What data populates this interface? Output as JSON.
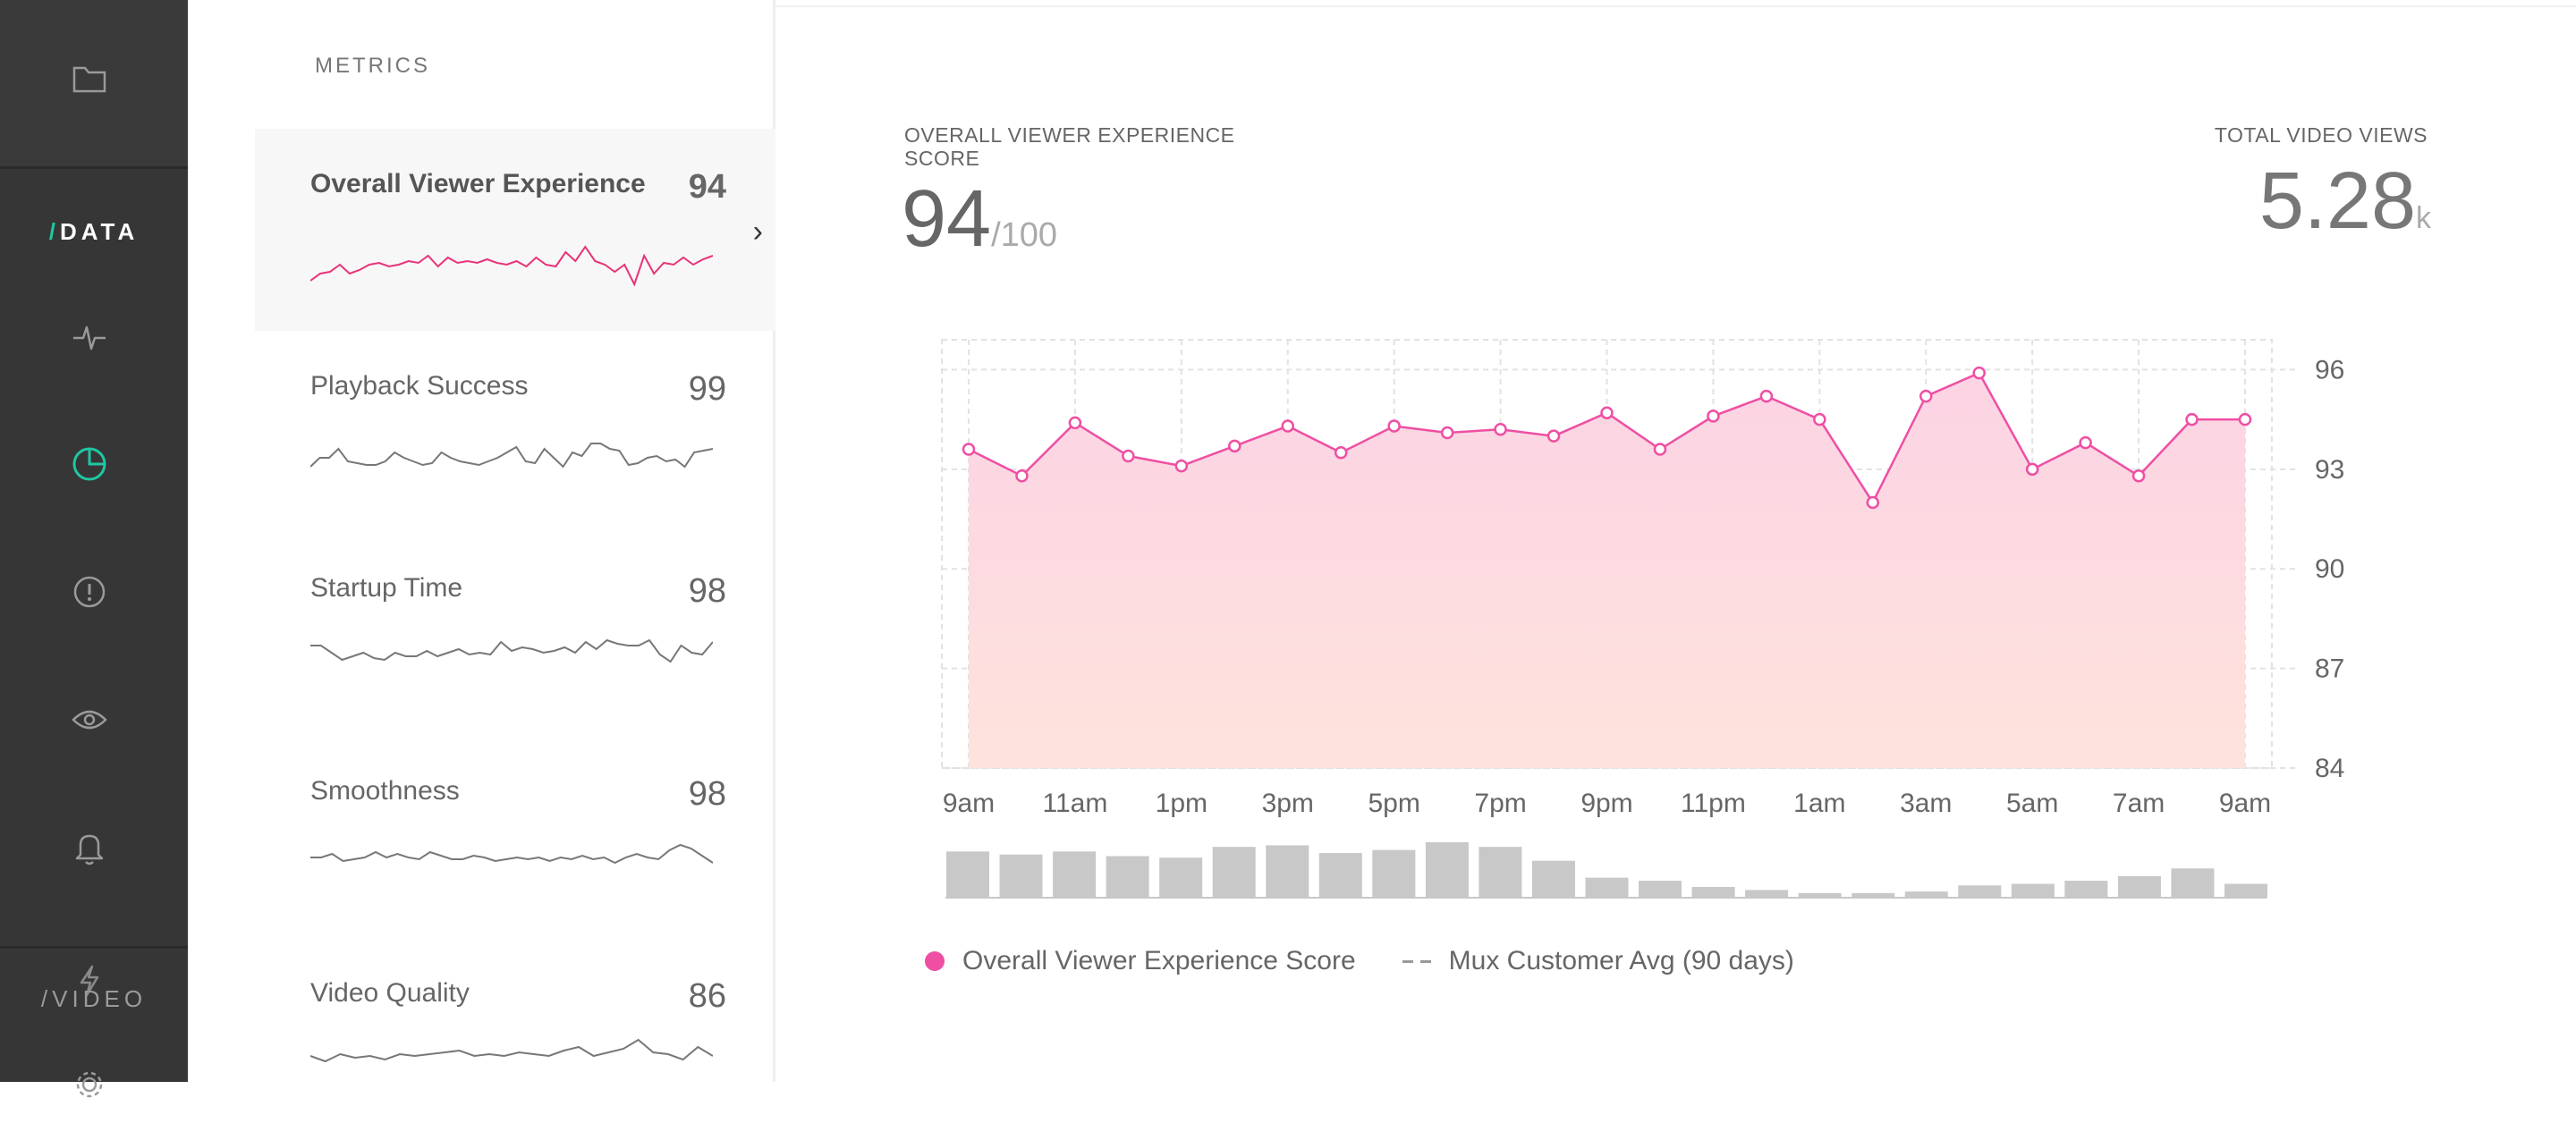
{
  "nav": {
    "data_label_slash": "/",
    "data_label": "DATA",
    "video_label": "/VIDEO",
    "icons": [
      "folder-icon",
      "pulse-icon",
      "pie-chart-icon",
      "alert-icon",
      "eye-icon",
      "bell-icon",
      "lightning-icon",
      "gear-icon"
    ],
    "accent_color": "#1fc7a2"
  },
  "metrics": {
    "heading": "METRICS",
    "items": [
      {
        "name": "Overall Viewer Experience",
        "score": "94",
        "spark": [
          58,
          50,
          48,
          40,
          50,
          46,
          40,
          38,
          42,
          40,
          36,
          38,
          30,
          42,
          32,
          38,
          36,
          38,
          34,
          38,
          40,
          36,
          42,
          32,
          40,
          42,
          26,
          36,
          20,
          36,
          40,
          48,
          40,
          62,
          30,
          50,
          38,
          40,
          32,
          40,
          34,
          30
        ],
        "color": "#e8337a"
      },
      {
        "name": "Playback Success",
        "score": "99",
        "spark": [
          40,
          30,
          30,
          20,
          34,
          36,
          38,
          38,
          34,
          24,
          30,
          34,
          38,
          36,
          24,
          30,
          34,
          36,
          38,
          34,
          30,
          24,
          18,
          34,
          36,
          20,
          30,
          40,
          24,
          28,
          14,
          14,
          20,
          22,
          38,
          36,
          30,
          28,
          34,
          32,
          40,
          24,
          22,
          20
        ],
        "color": "#777777"
      },
      {
        "name": "Startup Time",
        "score": "98",
        "spark": [
          14,
          14,
          22,
          30,
          26,
          22,
          28,
          30,
          22,
          26,
          26,
          20,
          26,
          22,
          18,
          24,
          22,
          24,
          10,
          20,
          16,
          18,
          22,
          20,
          16,
          22,
          10,
          18,
          8,
          12,
          14,
          14,
          8,
          24,
          32,
          14,
          22,
          24,
          10
        ],
        "color": "#777777"
      },
      {
        "name": "Smoothness",
        "score": "98",
        "spark": [
          24,
          24,
          20,
          28,
          26,
          24,
          18,
          24,
          20,
          24,
          26,
          18,
          22,
          26,
          26,
          22,
          24,
          28,
          26,
          24,
          26,
          24,
          28,
          24,
          26,
          22,
          26,
          24,
          30,
          24,
          20,
          24,
          26,
          16,
          10,
          14,
          22,
          30
        ],
        "color": "#777777"
      },
      {
        "name": "Video Quality",
        "score": "86",
        "spark": [
          20,
          26,
          18,
          22,
          20,
          24,
          18,
          20,
          18,
          16,
          14,
          20,
          18,
          20,
          16,
          18,
          20,
          14,
          10,
          20,
          16,
          12,
          2,
          16,
          18,
          24,
          10,
          20
        ],
        "color": "#777777"
      }
    ]
  },
  "main": {
    "score_label": "OVERALL VIEWER EXPERIENCE SCORE",
    "score_value": "94",
    "score_max": "/100",
    "views_label": "TOTAL VIDEO VIEWS",
    "views_value": "5.28",
    "views_unit": "k"
  },
  "chart_data": {
    "type": "area",
    "series": [
      {
        "name": "Overall Viewer Experience Score",
        "color": "#ee4fa3",
        "values": [
          93.6,
          92.8,
          94.4,
          93.4,
          93.1,
          93.7,
          94.3,
          93.5,
          94.3,
          94.1,
          94.2,
          94.0,
          94.7,
          93.6,
          94.6,
          95.2,
          94.5,
          92.0,
          95.2,
          95.9,
          93.0,
          93.8,
          92.8,
          94.5,
          94.5
        ]
      }
    ],
    "x_ticks": [
      "9am",
      "11am",
      "1pm",
      "3pm",
      "5pm",
      "7pm",
      "9pm",
      "11pm",
      "1am",
      "3am",
      "5am",
      "7am",
      "9am"
    ],
    "y_ticks": [
      84,
      87,
      90,
      93,
      96
    ],
    "ylim": [
      84,
      96.9
    ],
    "views_bars": [
      30,
      28,
      30,
      27,
      26,
      33,
      34,
      29,
      31,
      36,
      33,
      24,
      13,
      11,
      7,
      5,
      3,
      3,
      4,
      8,
      9,
      11,
      14,
      19,
      9
    ],
    "legend": [
      "Overall Viewer Experience Score",
      "Mux Customer Avg (90 days)"
    ],
    "grid": true
  }
}
